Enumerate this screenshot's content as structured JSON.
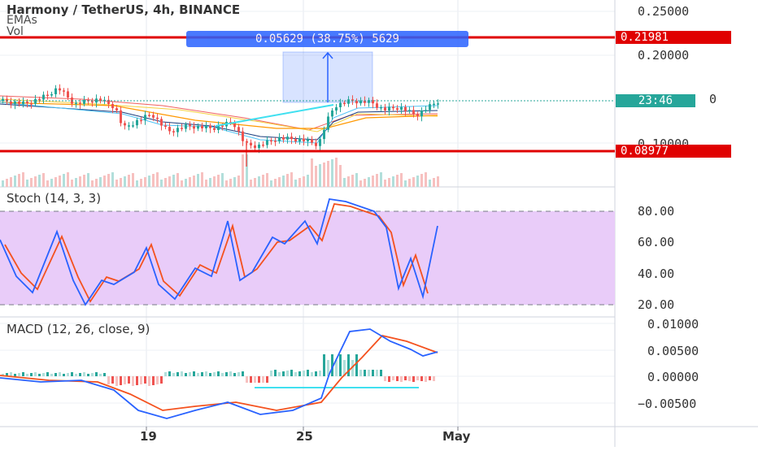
{
  "header": {
    "symbol": "Harmony / TetherUS, 4h, BINANCE",
    "line1": "EMAs",
    "line2": "Vol"
  },
  "price_axis": {
    "labels": [
      "0.25000",
      "0.20000",
      "0.10000"
    ],
    "badge_top": "0.21981",
    "badge_bottom": "0.08977",
    "badge_timer": "23:46",
    "timer_suffix": "0"
  },
  "measure_tool": {
    "label": "0.05629 (38.75%) 5629"
  },
  "stoch": {
    "title": "Stoch (14, 3, 3)",
    "axis_labels": [
      "80.00",
      "60.00",
      "40.00",
      "20.00"
    ]
  },
  "macd": {
    "title": "MACD (12, 26, close, 9)",
    "axis_labels": [
      "0.01000",
      "0.00500",
      "0.00000",
      "−0.00500"
    ]
  },
  "time_axis": {
    "labels": [
      "19",
      "25",
      "May"
    ]
  },
  "colors": {
    "accent_red": "#e00000",
    "teal": "#26a69a",
    "red_candle": "#ef5350",
    "blue_line": "#2962ff",
    "orange_line": "#f4511e",
    "stoch_band": "#e9ccf9"
  }
}
